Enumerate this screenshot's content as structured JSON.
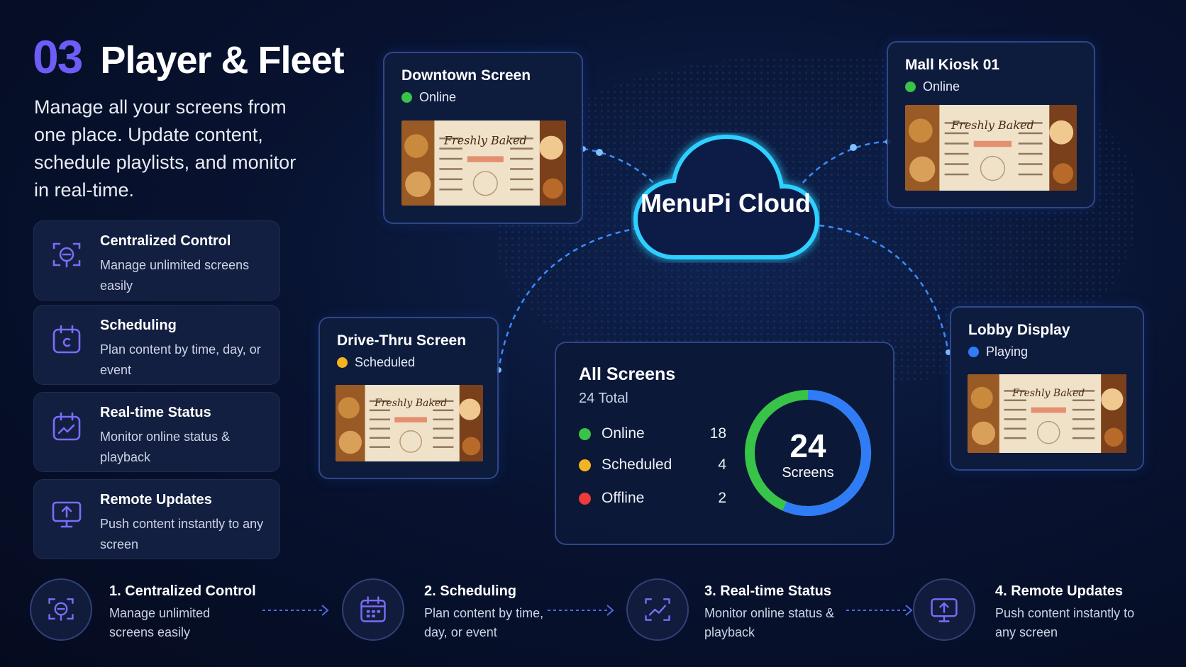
{
  "section": {
    "number": "03",
    "title": "Player & Fleet"
  },
  "intro": "Manage all your screens from one place. Update content, schedule playlists, and monitor in real-time.",
  "features": [
    {
      "title": "Centralized Control",
      "desc": "Manage unlimited screens easily",
      "icon": "centralized-control-icon"
    },
    {
      "title": "Scheduling",
      "desc": "Plan content by time, day, or event",
      "icon": "calendar-icon"
    },
    {
      "title": "Real-time Status",
      "desc": "Monitor online status & playback",
      "icon": "status-chart-icon"
    },
    {
      "title": "Remote Updates",
      "desc": "Push content instantly to any screen",
      "icon": "monitor-upload-icon"
    }
  ],
  "cloud": {
    "label": "MenuPi Cloud"
  },
  "screens": [
    {
      "name": "Downtown Screen",
      "status": "Online",
      "color": "#38c449"
    },
    {
      "name": "Mall Kiosk 01",
      "status": "Online",
      "color": "#38c449"
    },
    {
      "name": "Drive-Thru Screen",
      "status": "Scheduled",
      "color": "#f4b421"
    },
    {
      "name": "Lobby Display",
      "status": "Playing",
      "color": "#2f7cf6"
    }
  ],
  "menu_image": {
    "script_text": "Freshly Baked"
  },
  "summary": {
    "title": "All Screens",
    "subtitle": "24 Total",
    "total": "24",
    "unit": "Screens",
    "rows": [
      {
        "label": "Online",
        "value": "18",
        "color": "#38c449"
      },
      {
        "label": "Scheduled",
        "value": "4",
        "color": "#f4b421"
      },
      {
        "label": "Offline",
        "value": "2",
        "color": "#ee3b3b"
      }
    ]
  },
  "steps": [
    {
      "title": "1. Centralized Control",
      "desc": "Manage unlimited screens easily"
    },
    {
      "title": "2. Scheduling",
      "desc": "Plan content by time, day, or event"
    },
    {
      "title": "3. Real-time Status",
      "desc": "Monitor online status & playback"
    },
    {
      "title": "4. Remote Updates",
      "desc": "Push content instantly to any screen"
    }
  ],
  "colors": {
    "accent": "#6d5cf6",
    "cloud_glow": "#27c6ff",
    "donut_green": "#38c449",
    "donut_blue": "#2f7cf6"
  }
}
